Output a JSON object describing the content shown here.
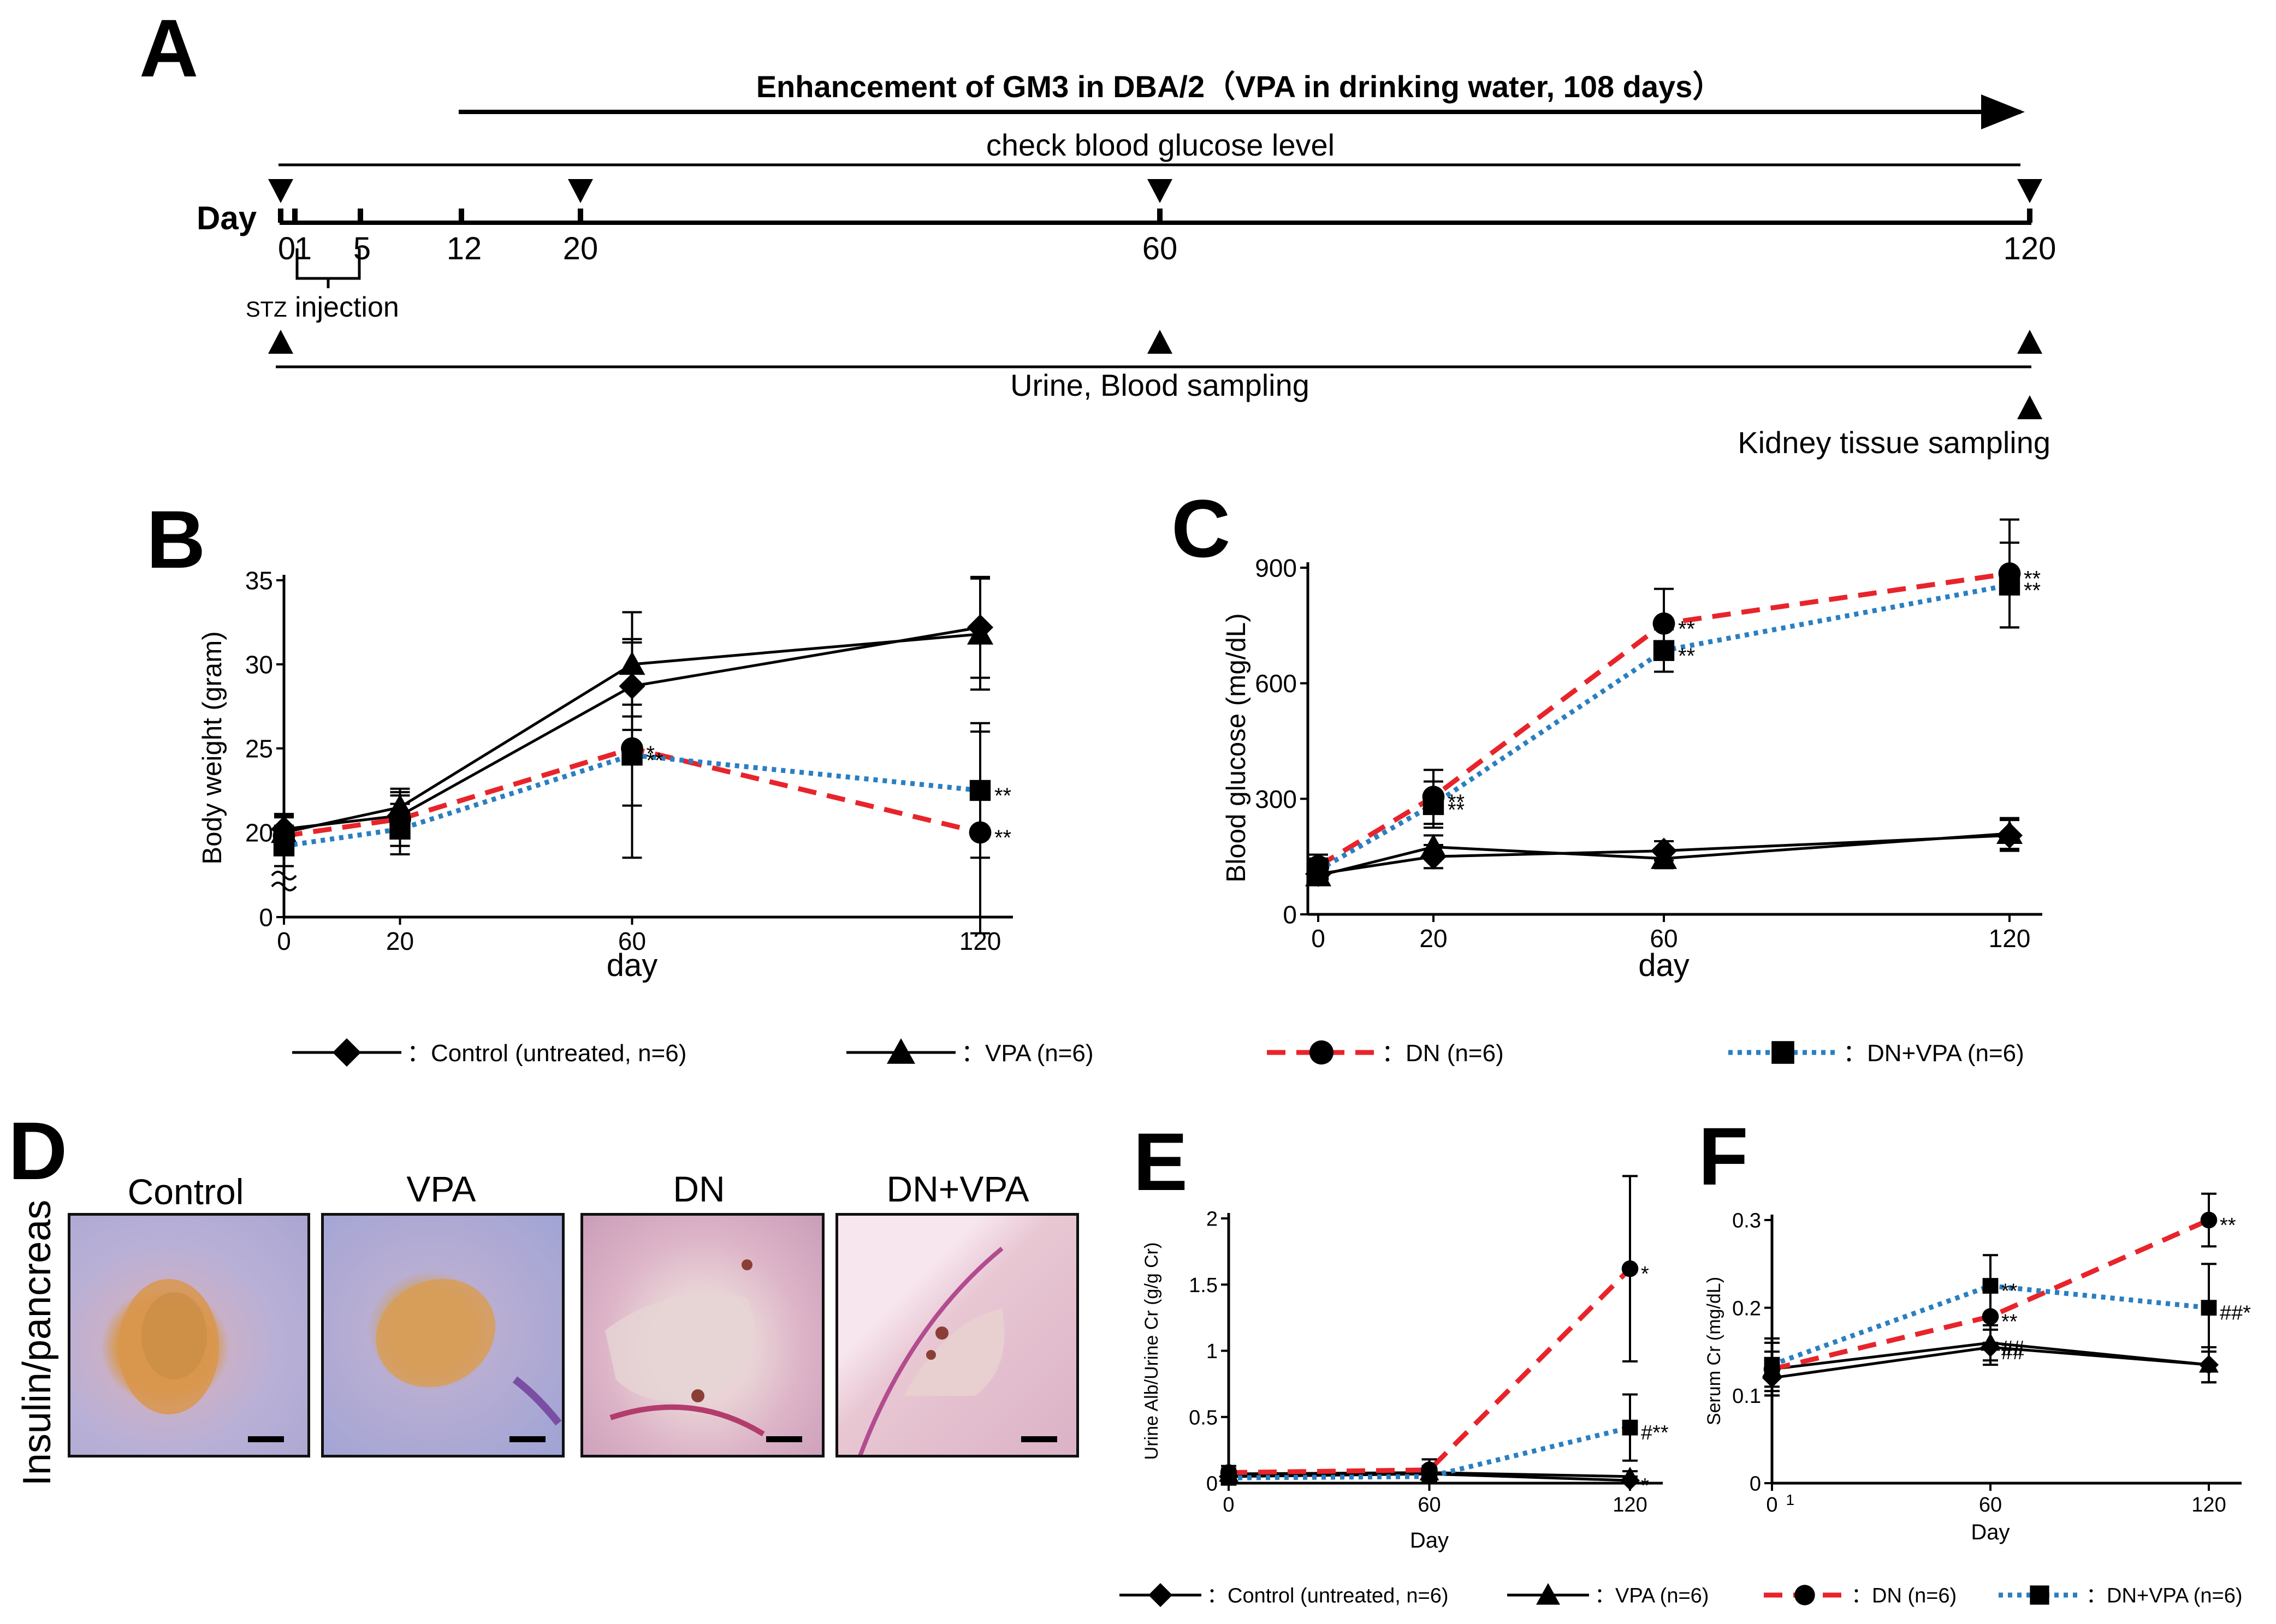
{
  "panel_labels": {
    "a": "A",
    "b": "B",
    "c": "C",
    "d": "D",
    "e": "E",
    "f": "F"
  },
  "timeline": {
    "enhancement": "Enhancement of GM3 in DBA/2（VPA in drinking water, 108 days）",
    "check_glucose": "check blood glucose level",
    "day_label": "Day",
    "ticks": [
      {
        "label": "0",
        "day": 0
      },
      {
        "label": "1",
        "day": 1
      },
      {
        "label": "5",
        "day": 5
      },
      {
        "label": "12",
        "day": 12
      },
      {
        "label": "20",
        "day": 20
      },
      {
        "label": "60",
        "day": 60
      },
      {
        "label": "120",
        "day": 120
      }
    ],
    "stz_prefix": "STZ",
    "stz_suffix": " injection",
    "urine_blood": "Urine, Blood sampling",
    "kidney": "Kidney tissue sampling"
  },
  "legend_main": [
    {
      "marker": "diamond",
      "label": "：Control (untreated, n=6)"
    },
    {
      "marker": "triangle",
      "label": "：VPA (n=6)"
    },
    {
      "marker": "circle",
      "label": "：DN (n=6)"
    },
    {
      "marker": "square",
      "label": "：DN+VPA (n=6)"
    }
  ],
  "legend_bottom": [
    {
      "marker": "diamond",
      "label": "：Control (untreated, n=6)"
    },
    {
      "marker": "triangle",
      "label": "：VPA (n=6)"
    },
    {
      "marker": "circle",
      "label": "：DN (n=6)"
    },
    {
      "marker": "square",
      "label": "：DN+VPA (n=6)"
    }
  ],
  "histology": {
    "side_label": "Insulin/pancreas",
    "panels": [
      "Control",
      "VPA",
      "DN",
      "DN+VPA"
    ]
  },
  "colors": {
    "control": "#000000",
    "vpa": "#000000",
    "dn": "#e8242b",
    "dn_vpa": "#2a7fc1"
  },
  "chart_data": [
    {
      "id": "B",
      "type": "line",
      "xlabel": "day",
      "ylabel": "Body weight (gram)",
      "xlim": [
        0,
        120
      ],
      "ylim": [
        0,
        35
      ],
      "xticks": [
        0,
        20,
        60,
        120
      ],
      "yticks": [
        0,
        20,
        25,
        30,
        35
      ],
      "axis_break": true,
      "series": [
        {
          "name": "Control",
          "marker": "diamond",
          "style": "solid",
          "color": "#000000",
          "x": [
            0,
            20,
            60,
            120
          ],
          "y": [
            20.2,
            21,
            28.7,
            32.2
          ],
          "err": [
            0.9,
            1.2,
            2.6,
            3.0
          ],
          "annot": [
            "",
            "",
            "",
            ""
          ]
        },
        {
          "name": "VPA",
          "marker": "triangle",
          "style": "solid",
          "color": "#000000",
          "x": [
            0,
            20,
            60,
            120
          ],
          "y": [
            20,
            21.5,
            30,
            31.8
          ],
          "err": [
            1.0,
            1.1,
            3.1,
            3.3
          ],
          "annot": [
            "",
            "",
            "",
            ""
          ]
        },
        {
          "name": "DN",
          "marker": "circle",
          "style": "dashed",
          "color": "#e8242b",
          "x": [
            0,
            20,
            60,
            120
          ],
          "y": [
            19.8,
            20.8,
            25,
            20
          ],
          "err": [
            1.1,
            1.6,
            6.5,
            6.0
          ],
          "annot": [
            "",
            "",
            "*",
            "**"
          ]
        },
        {
          "name": "DN+VPA",
          "marker": "square",
          "style": "dotted",
          "color": "#2a7fc1",
          "x": [
            0,
            20,
            60,
            120
          ],
          "y": [
            19.2,
            20.2,
            24.6,
            22.5
          ],
          "err": [
            1.2,
            1.5,
            3.0,
            4.0
          ],
          "annot": [
            "",
            "",
            "**",
            "**"
          ]
        }
      ]
    },
    {
      "id": "C",
      "type": "line",
      "xlabel": "day",
      "ylabel": "Blood glucose (mg/dL)",
      "xlim": [
        0,
        120
      ],
      "ylim": [
        0,
        900
      ],
      "xticks": [
        0,
        20,
        60,
        120
      ],
      "yticks": [
        0,
        300,
        600,
        900
      ],
      "series": [
        {
          "name": "Control",
          "marker": "diamond",
          "style": "solid",
          "color": "#000000",
          "x": [
            0,
            20,
            60,
            120
          ],
          "y": [
            105,
            150,
            165,
            205
          ],
          "err": [
            20,
            30,
            25,
            40
          ],
          "annot": [
            "",
            "",
            "",
            ""
          ]
        },
        {
          "name": "VPA",
          "marker": "triangle",
          "style": "solid",
          "color": "#000000",
          "x": [
            0,
            20,
            60,
            120
          ],
          "y": [
            100,
            175,
            145,
            210
          ],
          "err": [
            20,
            30,
            25,
            40
          ],
          "annot": [
            "",
            "",
            "",
            ""
          ]
        },
        {
          "name": "DN",
          "marker": "circle",
          "style": "dashed",
          "color": "#e8242b",
          "x": [
            0,
            20,
            60,
            120
          ],
          "y": [
            125,
            305,
            755,
            885
          ],
          "err": [
            30,
            70,
            90,
            140
          ],
          "annot": [
            "",
            "**",
            "**",
            "**"
          ]
        },
        {
          "name": "DN+VPA",
          "marker": "square",
          "style": "dotted",
          "color": "#2a7fc1",
          "x": [
            0,
            20,
            60,
            120
          ],
          "y": [
            115,
            285,
            685,
            855
          ],
          "err": [
            30,
            60,
            55,
            110
          ],
          "annot": [
            "",
            "**",
            "**",
            "**"
          ]
        }
      ]
    },
    {
      "id": "E",
      "type": "line",
      "xlabel": "Day",
      "ylabel": "Urine Alb/Urine Cr (g/g Cr)",
      "xlim": [
        0,
        120
      ],
      "ylim": [
        0,
        2
      ],
      "xticks": [
        0,
        60,
        120
      ],
      "yticks": [
        0,
        0.5,
        1,
        1.5,
        2
      ],
      "ytick_labels": [
        "0",
        "0.5",
        "1",
        "1.5",
        "2"
      ],
      "series": [
        {
          "name": "Control",
          "marker": "diamond",
          "style": "solid",
          "color": "#000000",
          "x": [
            0,
            60,
            120
          ],
          "y": [
            0.05,
            0.07,
            0.02
          ],
          "err": [
            0.04,
            0.04,
            0.03
          ],
          "annot": [
            "",
            "",
            "*"
          ]
        },
        {
          "name": "VPA",
          "marker": "triangle",
          "style": "solid",
          "color": "#000000",
          "x": [
            0,
            60,
            120
          ],
          "y": [
            0.07,
            0.08,
            0.05
          ],
          "err": [
            0.04,
            0.05,
            0.04
          ],
          "annot": [
            "",
            "",
            ""
          ]
        },
        {
          "name": "DN",
          "marker": "circle",
          "style": "dashed",
          "color": "#e8242b",
          "x": [
            0,
            60,
            120
          ],
          "y": [
            0.08,
            0.1,
            1.62
          ],
          "err": [
            0.05,
            0.08,
            0.7
          ],
          "annot": [
            "",
            "",
            "*"
          ]
        },
        {
          "name": "DN+VPA",
          "marker": "square",
          "style": "dotted",
          "color": "#2a7fc1",
          "x": [
            0,
            60,
            120
          ],
          "y": [
            0.04,
            0.05,
            0.42
          ],
          "err": [
            0.04,
            0.04,
            0.25
          ],
          "annot": [
            "",
            "",
            "#**"
          ]
        }
      ]
    },
    {
      "id": "F",
      "type": "line",
      "xlabel": "Day",
      "ylabel": "Serum Cr (mg/dL)",
      "xlim": [
        0,
        120
      ],
      "ylim": [
        0,
        0.3
      ],
      "xticks": [
        0,
        60,
        120
      ],
      "extra_xtick": {
        "value": 5,
        "label": "1"
      },
      "yticks": [
        0,
        0.1,
        0.2,
        0.3
      ],
      "ytick_labels": [
        "0",
        "0.1",
        "0.2",
        "0.3"
      ],
      "series": [
        {
          "name": "Control",
          "marker": "diamond",
          "style": "solid",
          "color": "#000000",
          "x": [
            0,
            60,
            120
          ],
          "y": [
            0.12,
            0.155,
            0.135
          ],
          "err": [
            0.02,
            0.02,
            0.02
          ],
          "annot": [
            "",
            "##",
            ""
          ]
        },
        {
          "name": "VPA",
          "marker": "triangle",
          "style": "solid",
          "color": "#000000",
          "x": [
            0,
            60,
            120
          ],
          "y": [
            0.13,
            0.16,
            0.135
          ],
          "err": [
            0.02,
            0.02,
            0.02
          ],
          "annot": [
            "",
            "##",
            ""
          ]
        },
        {
          "name": "DN",
          "marker": "circle",
          "style": "dashed",
          "color": "#e8242b",
          "x": [
            0,
            60,
            120
          ],
          "y": [
            0.13,
            0.19,
            0.3
          ],
          "err": [
            0.03,
            0.03,
            0.03
          ],
          "annot": [
            "",
            "**",
            "**"
          ]
        },
        {
          "name": "DN+VPA",
          "marker": "square",
          "style": "dotted",
          "color": "#2a7fc1",
          "x": [
            0,
            60,
            120
          ],
          "y": [
            0.135,
            0.225,
            0.2
          ],
          "err": [
            0.03,
            0.035,
            0.05
          ],
          "annot": [
            "",
            "**",
            "##*"
          ]
        }
      ]
    }
  ]
}
